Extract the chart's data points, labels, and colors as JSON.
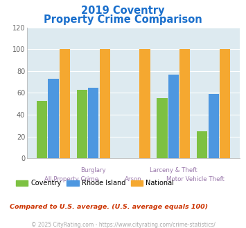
{
  "title_line1": "2019 Coventry",
  "title_line2": "Property Crime Comparison",
  "title_color": "#1a6fcc",
  "groups": [
    "All Property Crime",
    "Burglary",
    "Arson",
    "Larceny & Theft",
    "Motor Vehicle Theft"
  ],
  "coventry": [
    53,
    63,
    0,
    55,
    25
  ],
  "rhode_island": [
    73,
    65,
    0,
    77,
    59
  ],
  "national": [
    100,
    100,
    100,
    100,
    100
  ],
  "bar_color_coventry": "#7dc142",
  "bar_color_rhode_island": "#4d97e0",
  "bar_color_national": "#f5a830",
  "ylim": [
    0,
    120
  ],
  "yticks": [
    0,
    20,
    40,
    60,
    80,
    100,
    120
  ],
  "background_color": "#ddeaf0",
  "grid_color": "#ffffff",
  "axis_label_color": "#9977aa",
  "xlabel_row1": [
    [
      "Burglary",
      1
    ],
    [
      "Larceny & Theft",
      3
    ]
  ],
  "xlabel_row2": [
    [
      "All Property Crime",
      0.5
    ],
    [
      "Arson",
      2
    ],
    [
      "Motor Vehicle Theft",
      3.75
    ]
  ],
  "legend_labels": [
    "Coventry",
    "Rhode Island",
    "National"
  ],
  "footnote1": "Compared to U.S. average. (U.S. average equals 100)",
  "footnote2": "© 2025 CityRating.com - https://www.cityrating.com/crime-statistics/",
  "footnote1_color": "#cc3300",
  "footnote2_color": "#aaaaaa"
}
